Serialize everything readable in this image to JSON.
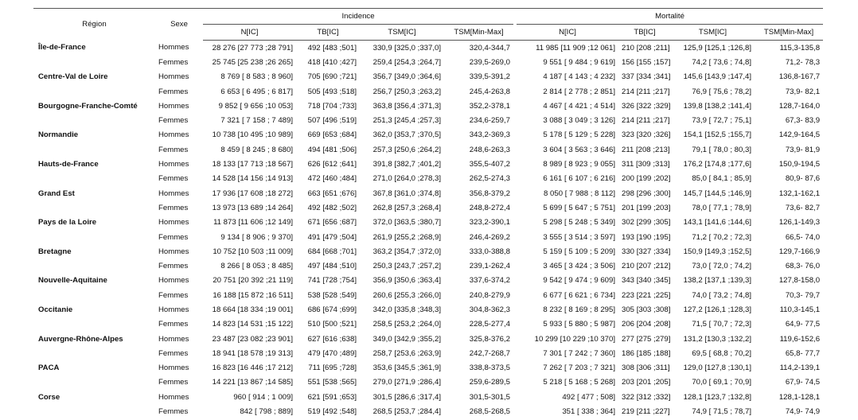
{
  "header": {
    "region": "Région",
    "sexe": "Sexe",
    "incidence": "Incidence",
    "mortalite": "Mortalité",
    "columns": [
      "N[IC]",
      "TB[IC]",
      "TSM[IC]",
      "TSM[Min-Max]",
      "N[IC]",
      "TB[IC]",
      "TSM[IC]",
      "TSM[Min-Max]"
    ]
  },
  "groups": [
    {
      "region": "Île-de-France",
      "rows": [
        {
          "sexe": "Hommes",
          "cells": [
            "28 276 [27 773 ;28 791]",
            "492 [483 ;501]",
            "330,9 [325,0 ;337,0]",
            "320,4-344,7",
            "11 985 [11 909 ;12 061]",
            "210 [208 ;211]",
            "125,9 [125,1 ;126,8]",
            "115,3-135,8"
          ]
        },
        {
          "sexe": "Femmes",
          "cells": [
            "25 745 [25 238 ;26 265]",
            "418 [410 ;427]",
            "259,4 [254,3 ;264,7]",
            "239,5-269,0",
            "9 551 [ 9 484 ; 9 619]",
            "156 [155 ;157]",
            "74,2 [ 73,6 ; 74,8]",
            "71,2- 78,3"
          ]
        }
      ]
    },
    {
      "region": "Centre-Val de Loire",
      "rows": [
        {
          "sexe": "Hommes",
          "cells": [
            "8 769 [ 8 583 ; 8 960]",
            "705 [690 ;721]",
            "356,7 [349,0 ;364,6]",
            "339,5-391,2",
            "4 187 [ 4 143 ; 4 232]",
            "337 [334 ;341]",
            "145,6 [143,9 ;147,4]",
            "136,8-167,7"
          ]
        },
        {
          "sexe": "Femmes",
          "cells": [
            "6 653 [ 6 495 ; 6 817]",
            "505 [493 ;518]",
            "256,7 [250,3 ;263,2]",
            "245,4-263,8",
            "2 814 [ 2 778 ; 2 851]",
            "214 [211 ;217]",
            "76,9 [ 75,6 ; 78,2]",
            "73,9- 82,1"
          ]
        }
      ]
    },
    {
      "region": "Bourgogne-Franche-Comté",
      "rows": [
        {
          "sexe": "Hommes",
          "cells": [
            "9 852 [ 9 656 ;10 053]",
            "718 [704 ;733]",
            "363,8 [356,4 ;371,3]",
            "352,2-378,1",
            "4 467 [ 4 421 ; 4 514]",
            "326 [322 ;329]",
            "139,8 [138,2 ;141,4]",
            "128,7-164,0"
          ]
        },
        {
          "sexe": "Femmes",
          "cells": [
            "7 321 [ 7 158 ; 7 489]",
            "507 [496 ;519]",
            "251,3 [245,4 ;257,3]",
            "234,6-259,7",
            "3 088 [ 3 049 ; 3 126]",
            "214 [211 ;217]",
            "73,9 [ 72,7 ; 75,1]",
            "67,3- 83,9"
          ]
        }
      ]
    },
    {
      "region": "Normandie",
      "rows": [
        {
          "sexe": "Hommes",
          "cells": [
            "10 738 [10 495 ;10 989]",
            "669 [653 ;684]",
            "362,0 [353,7 ;370,5]",
            "343,2-369,3",
            "5 178 [ 5 129 ; 5 228]",
            "323 [320 ;326]",
            "154,1 [152,5 ;155,7]",
            "142,9-164,5"
          ]
        },
        {
          "sexe": "Femmes",
          "cells": [
            "8 459 [ 8 245 ; 8 680]",
            "494 [481 ;506]",
            "257,3 [250,6 ;264,2]",
            "248,6-263,3",
            "3 604 [ 3 563 ; 3 646]",
            "211 [208 ;213]",
            "79,1 [ 78,0 ; 80,3]",
            "73,9- 81,9"
          ]
        }
      ]
    },
    {
      "region": "Hauts-de-France",
      "rows": [
        {
          "sexe": "Hommes",
          "cells": [
            "18 133 [17 713 ;18 567]",
            "626 [612 ;641]",
            "391,8 [382,7 ;401,2]",
            "355,5-407,2",
            "8 989 [ 8 923 ; 9 055]",
            "311 [309 ;313]",
            "176,2 [174,8 ;177,6]",
            "150,9-194,5"
          ]
        },
        {
          "sexe": "Femmes",
          "cells": [
            "14 528 [14 156 ;14 913]",
            "472 [460 ;484]",
            "271,0 [264,0 ;278,3]",
            "262,5-274,3",
            "6 161 [ 6 107 ; 6 216]",
            "200 [199 ;202]",
            "85,0 [ 84,1 ; 85,9]",
            "80,9- 87,6"
          ]
        }
      ]
    },
    {
      "region": "Grand Est",
      "rows": [
        {
          "sexe": "Hommes",
          "cells": [
            "17 936 [17 608 ;18 272]",
            "663 [651 ;676]",
            "367,8 [361,0 ;374,8]",
            "356,8-379,2",
            "8 050 [ 7 988 ; 8 112]",
            "298 [296 ;300]",
            "145,7 [144,5 ;146,9]",
            "132,1-162,1"
          ]
        },
        {
          "sexe": "Femmes",
          "cells": [
            "13 973 [13 689 ;14 264]",
            "492 [482 ;502]",
            "262,8 [257,3 ;268,4]",
            "248,8-272,4",
            "5 699 [ 5 647 ; 5 751]",
            "201 [199 ;203]",
            "78,0 [ 77,1 ; 78,9]",
            "73,6- 82,7"
          ]
        }
      ]
    },
    {
      "region": "Pays de la Loire",
      "rows": [
        {
          "sexe": "Hommes",
          "cells": [
            "11 873 [11 606 ;12 149]",
            "671 [656 ;687]",
            "372,0 [363,5 ;380,7]",
            "323,2-390,1",
            "5 298 [ 5 248 ; 5 349]",
            "302 [299 ;305]",
            "143,1 [141,6 ;144,6]",
            "126,1-149,3"
          ]
        },
        {
          "sexe": "Femmes",
          "cells": [
            "9 134 [ 8 906 ; 9 370]",
            "491 [479 ;504]",
            "261,9 [255,2 ;268,9]",
            "246,4-269,2",
            "3 555 [ 3 514 ; 3 597]",
            "193 [190 ;195]",
            "71,2 [ 70,2 ; 72,3]",
            "66,5- 74,0"
          ]
        }
      ]
    },
    {
      "region": "Bretagne",
      "rows": [
        {
          "sexe": "Hommes",
          "cells": [
            "10 752 [10 503 ;11 009]",
            "684 [668 ;701]",
            "363,2 [354,7 ;372,0]",
            "333,0-388,8",
            "5 159 [ 5 109 ; 5 209]",
            "330 [327 ;334]",
            "150,9 [149,3 ;152,5]",
            "129,7-166,9"
          ]
        },
        {
          "sexe": "Femmes",
          "cells": [
            "8 266 [ 8 053 ; 8 485]",
            "497 [484 ;510]",
            "250,3 [243,7 ;257,2]",
            "239,1-262,4",
            "3 465 [ 3 424 ; 3 506]",
            "210 [207 ;212]",
            "73,0 [ 72,0 ; 74,2]",
            "68,3- 76,0"
          ]
        }
      ]
    },
    {
      "region": "Nouvelle-Aquitaine",
      "rows": [
        {
          "sexe": "Hommes",
          "cells": [
            "20 751 [20 392 ;21 119]",
            "741 [728 ;754]",
            "356,9 [350,6 ;363,4]",
            "337,6-374,2",
            "9 542 [ 9 474 ; 9 609]",
            "343 [340 ;345]",
            "138,2 [137,1 ;139,3]",
            "127,8-158,0"
          ]
        },
        {
          "sexe": "Femmes",
          "cells": [
            "16 188 [15 872 ;16 511]",
            "538 [528 ;549]",
            "260,6 [255,3 ;266,0]",
            "240,8-279,9",
            "6 677 [ 6 621 ; 6 734]",
            "223 [221 ;225]",
            "74,0 [ 73,2 ; 74,8]",
            "70,3- 79,7"
          ]
        }
      ]
    },
    {
      "region": "Occitanie",
      "rows": [
        {
          "sexe": "Hommes",
          "cells": [
            "18 664 [18 334 ;19 001]",
            "686 [674 ;699]",
            "342,0 [335,8 ;348,3]",
            "304,8-362,3",
            "8 232 [ 8 169 ; 8 295]",
            "305 [303 ;308]",
            "127,2 [126,1 ;128,3]",
            "110,3-145,1"
          ]
        },
        {
          "sexe": "Femmes",
          "cells": [
            "14 823 [14 531 ;15 122]",
            "510 [500 ;521]",
            "258,5 [253,2 ;264,0]",
            "228,5-277,4",
            "5 933 [ 5 880 ; 5 987]",
            "206 [204 ;208]",
            "71,5 [ 70,7 ; 72,3]",
            "64,9- 77,5"
          ]
        }
      ]
    },
    {
      "region": "Auvergne-Rhône-Alpes",
      "rows": [
        {
          "sexe": "Hommes",
          "cells": [
            "23 487 [23 082 ;23 901]",
            "627 [616 ;638]",
            "349,0 [342,9 ;355,2]",
            "325,8-376,2",
            "10 299 [10 229 ;10 370]",
            "277 [275 ;279]",
            "131,2 [130,3 ;132,2]",
            "119,6-152,6"
          ]
        },
        {
          "sexe": "Femmes",
          "cells": [
            "18 941 [18 578 ;19 313]",
            "479 [470 ;489]",
            "258,7 [253,6 ;263,9]",
            "242,7-268,7",
            "7 301 [ 7 242 ; 7 360]",
            "186 [185 ;188]",
            "69,5 [ 68,8 ; 70,2]",
            "65,8- 77,7"
          ]
        }
      ]
    },
    {
      "region": "PACA",
      "rows": [
        {
          "sexe": "Hommes",
          "cells": [
            "16 823 [16 446 ;17 212]",
            "711 [695 ;728]",
            "353,6 [345,5 ;361,9]",
            "338,8-373,5",
            "7 262 [ 7 203 ; 7 321]",
            "308 [306 ;311]",
            "129,0 [127,8 ;130,1]",
            "114,2-139,1"
          ]
        },
        {
          "sexe": "Femmes",
          "cells": [
            "14 221 [13 867 ;14 585]",
            "551 [538 ;565]",
            "279,0 [271,9 ;286,4]",
            "259,6-289,5",
            "5 218 [ 5 168 ; 5 268]",
            "203 [201 ;205]",
            "70,0 [ 69,1 ; 70,9]",
            "67,9- 74,5"
          ]
        }
      ]
    },
    {
      "region": "Corse",
      "rows": [
        {
          "sexe": "Hommes",
          "cells": [
            "960 [ 914 ; 1 009]",
            "621 [591 ;653]",
            "301,5 [286,6 ;317,4]",
            "301,5-301,5",
            "492 [ 477 ; 508]",
            "322 [312 ;332]",
            "128,1 [123,7 ;132,8]",
            "128,1-128,1"
          ]
        },
        {
          "sexe": "Femmes",
          "cells": [
            "842 [ 798 ; 889]",
            "519 [492 ;548]",
            "268,5 [253,7 ;284,4]",
            "268,5-268,5",
            "351 [ 338 ; 364]",
            "219 [211 ;227]",
            "74,9 [ 71,5 ; 78,7]",
            "74,9- 74,9"
          ]
        }
      ]
    }
  ]
}
